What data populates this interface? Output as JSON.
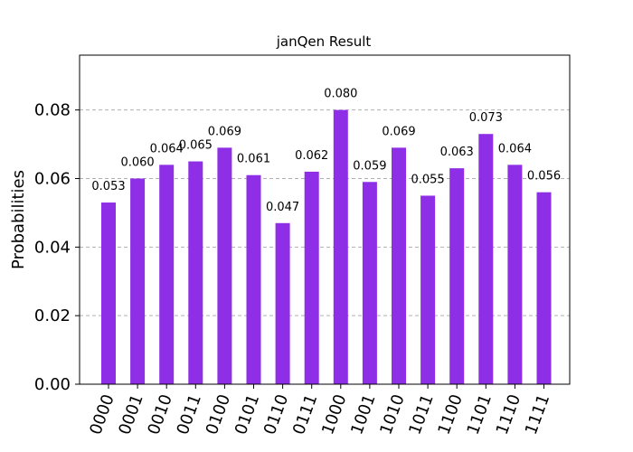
{
  "chart_data": {
    "type": "bar",
    "title": "janQen Result",
    "xlabel": "",
    "ylabel": "Probabilities",
    "categories": [
      "0000",
      "0001",
      "0010",
      "0011",
      "0100",
      "0101",
      "0110",
      "0111",
      "1000",
      "1001",
      "1010",
      "1011",
      "1100",
      "1101",
      "1110",
      "1111"
    ],
    "values": [
      0.053,
      0.06,
      0.064,
      0.065,
      0.069,
      0.061,
      0.047,
      0.062,
      0.08,
      0.059,
      0.069,
      0.055,
      0.063,
      0.073,
      0.064,
      0.056
    ],
    "value_labels": [
      "0.053",
      "0.060",
      "0.064",
      "0.065",
      "0.069",
      "0.061",
      "0.047",
      "0.062",
      "0.080",
      "0.059",
      "0.069",
      "0.055",
      "0.063",
      "0.073",
      "0.064",
      "0.056"
    ],
    "ylim": [
      0,
      0.096
    ],
    "yticks": [
      0.0,
      0.02,
      0.04,
      0.06,
      0.08
    ],
    "ytick_labels": [
      "0.00",
      "0.02",
      "0.04",
      "0.06",
      "0.08"
    ],
    "grid": true,
    "bar_color": "#8e2ee6"
  }
}
